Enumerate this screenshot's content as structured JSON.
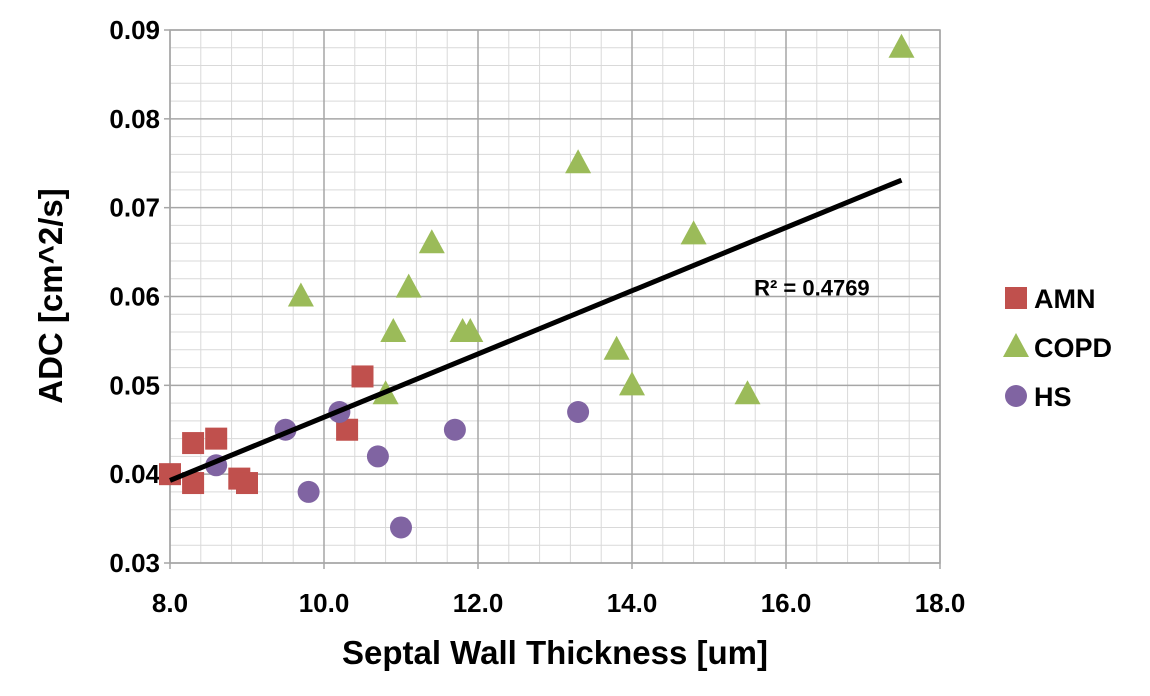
{
  "chart_data": {
    "type": "scatter",
    "title": "",
    "xlabel": "Septal Wall Thickness [um]",
    "ylabel": "ADC [cm^2/s]",
    "xlim": [
      8.0,
      18.0
    ],
    "ylim": [
      0.03,
      0.09
    ],
    "x_ticks": [
      "8.0",
      "10.0",
      "12.0",
      "14.0",
      "16.0",
      "18.0"
    ],
    "y_ticks": [
      "0.03",
      "0.04",
      "0.05",
      "0.06",
      "0.07",
      "0.08",
      "0.09"
    ],
    "grid": true,
    "legend_position": "right",
    "series": [
      {
        "name": "AMN",
        "marker": "square",
        "color": "#c0504d",
        "points": [
          [
            8.0,
            0.04
          ],
          [
            8.3,
            0.0435
          ],
          [
            8.3,
            0.039
          ],
          [
            8.6,
            0.044
          ],
          [
            8.9,
            0.0395
          ],
          [
            9.0,
            0.039
          ],
          [
            10.3,
            0.045
          ],
          [
            10.5,
            0.051
          ]
        ]
      },
      {
        "name": "COPD",
        "marker": "triangle",
        "color": "#9bbb59",
        "points": [
          [
            9.7,
            0.06
          ],
          [
            10.8,
            0.049
          ],
          [
            10.9,
            0.056
          ],
          [
            11.1,
            0.061
          ],
          [
            11.4,
            0.066
          ],
          [
            11.8,
            0.056
          ],
          [
            11.9,
            0.056
          ],
          [
            13.3,
            0.075
          ],
          [
            13.8,
            0.054
          ],
          [
            14.0,
            0.05
          ],
          [
            14.8,
            0.067
          ],
          [
            15.5,
            0.049
          ],
          [
            17.5,
            0.088
          ]
        ]
      },
      {
        "name": "HS",
        "marker": "circle",
        "color": "#8064a2",
        "points": [
          [
            8.6,
            0.041
          ],
          [
            9.5,
            0.045
          ],
          [
            9.8,
            0.038
          ],
          [
            10.2,
            0.047
          ],
          [
            10.7,
            0.042
          ],
          [
            11.0,
            0.034
          ],
          [
            11.7,
            0.045
          ],
          [
            13.3,
            0.047
          ]
        ]
      }
    ],
    "trendline": {
      "color": "#000000",
      "x": [
        8.0,
        17.5
      ],
      "y": [
        0.0393,
        0.0731
      ],
      "label": "R² = 0.4769",
      "label_pos": [
        16.3,
        0.061
      ]
    }
  }
}
